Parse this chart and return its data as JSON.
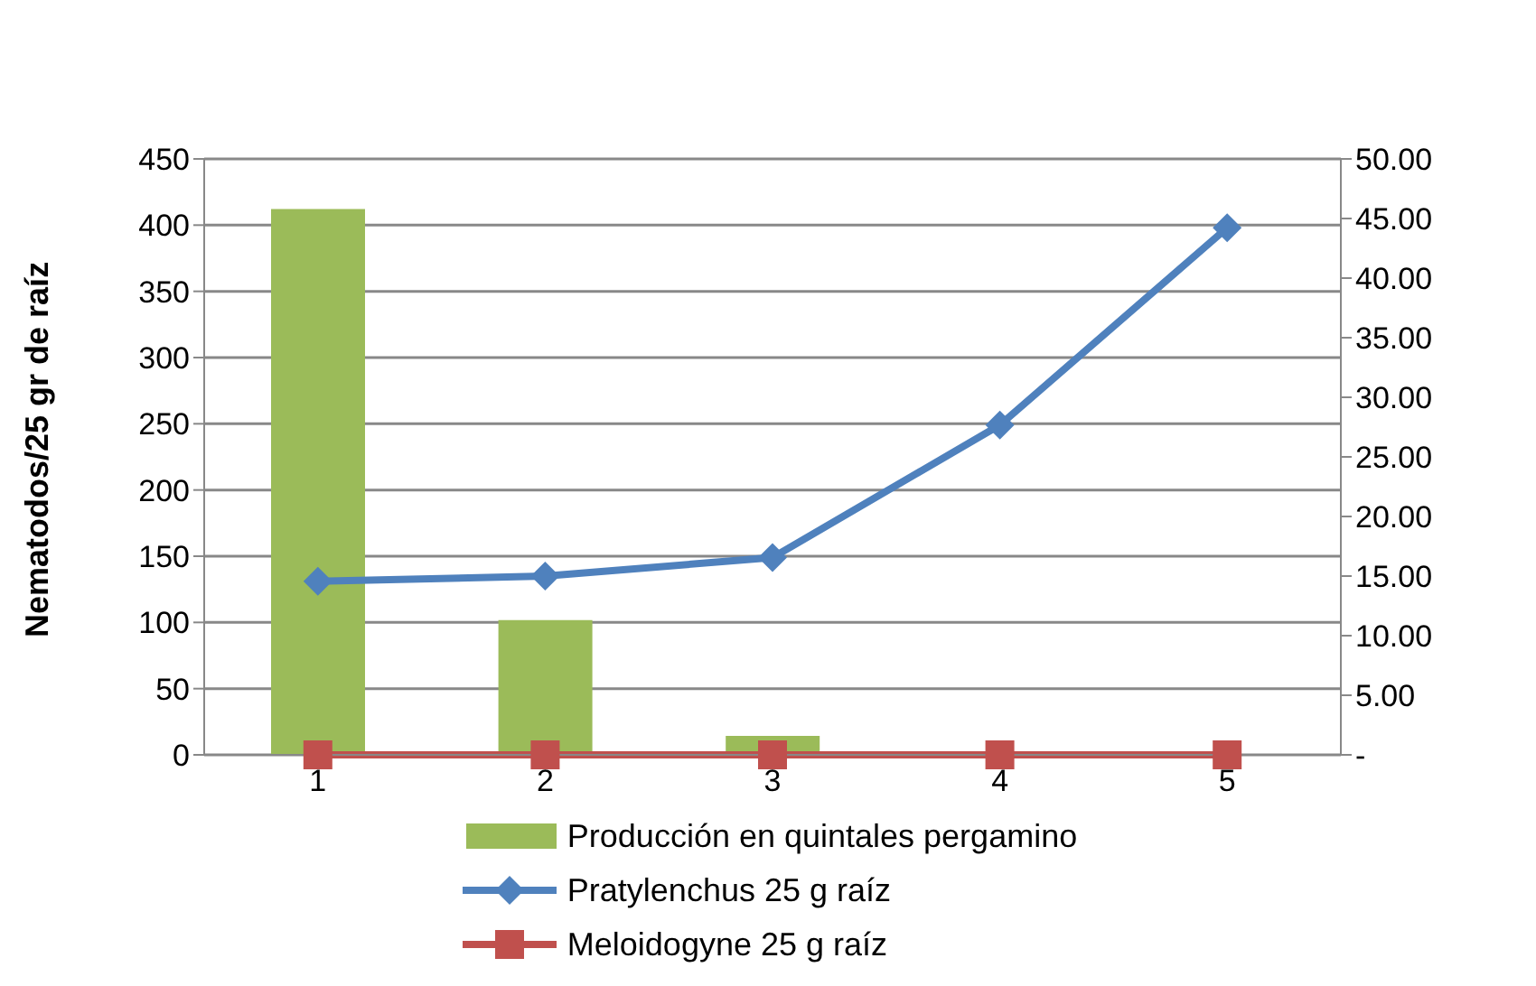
{
  "chart_data": {
    "type": "bar",
    "ylabel": "Nematodos/25 gr de raíz",
    "categories": [
      "1",
      "2",
      "3",
      "4",
      "5"
    ],
    "series": [
      {
        "name": "Producción en quintales pergamino",
        "axis": "y2",
        "color": "#9bbb59",
        "values": [
          45.8,
          11.3,
          1.6,
          0,
          0
        ]
      },
      {
        "name": "Pratylenchus 25 g   raíz",
        "type": "line",
        "marker": "diamond",
        "color": "#4f81bd",
        "values": [
          131,
          135,
          149,
          249,
          398
        ]
      },
      {
        "name": "Meloidogyne 25 g   raíz",
        "type": "line",
        "marker": "square",
        "color": "#c0504d",
        "values": [
          0,
          0,
          0,
          0,
          0
        ]
      }
    ],
    "ylim": [
      0,
      450
    ],
    "yticks": [
      0,
      50,
      100,
      150,
      200,
      250,
      300,
      350,
      400,
      450
    ],
    "y2lim": [
      0,
      50
    ],
    "y2ticks": [
      {
        "value": 0,
        "label": "-"
      },
      {
        "value": 5,
        "label": "5.00"
      },
      {
        "value": 10,
        "label": "10.00"
      },
      {
        "value": 15,
        "label": "15.00"
      },
      {
        "value": 20,
        "label": "20.00"
      },
      {
        "value": 25,
        "label": "25.00"
      },
      {
        "value": 30,
        "label": "30.00"
      },
      {
        "value": 35,
        "label": "35.00"
      },
      {
        "value": 40,
        "label": "40.00"
      },
      {
        "value": 45,
        "label": "45.00"
      },
      {
        "value": 50,
        "label": "50.00"
      }
    ],
    "grid": "y",
    "legend": "bottom"
  }
}
